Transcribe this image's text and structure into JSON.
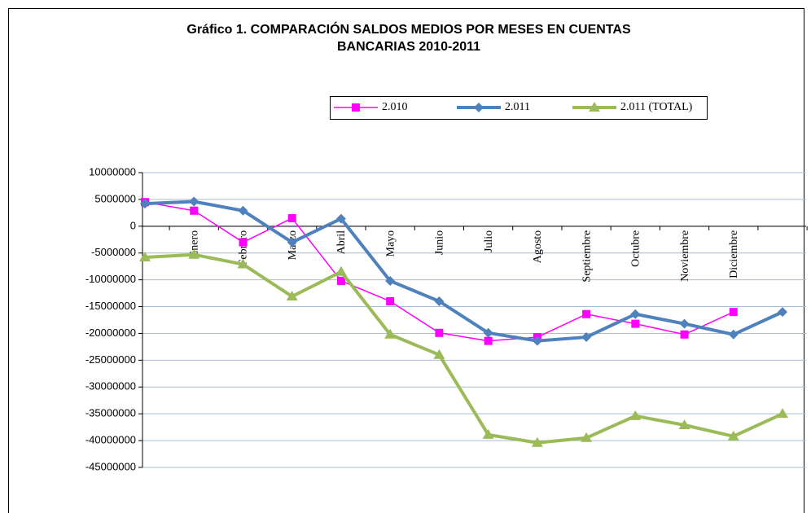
{
  "chart_data": {
    "type": "line",
    "title": "Gráfico 1. COMPARACIÓN SALDOS MEDIOS POR MESES EN CUENTAS",
    "subtitle": "BANCARIAS 2010-2011",
    "categories": [
      null,
      "Enero",
      "Febrero",
      "Marzo",
      "Abril",
      "Mayo",
      "Junio",
      "Julio",
      "Agosto",
      "Septiembre",
      "Octubre",
      "Noviembre",
      "Diciembre",
      null
    ],
    "series": [
      {
        "name": "2.010",
        "color": "#ff00ff",
        "marker": "square",
        "values": [
          4500000,
          2900000,
          -3000000,
          1500000,
          -10200000,
          -14000000,
          -19900000,
          -21400000,
          -20700000,
          -16400000,
          -18200000,
          -20200000,
          -16000000,
          null
        ]
      },
      {
        "name": "2.011",
        "color": "#4f81bd",
        "marker": "diamond",
        "values": [
          4200000,
          4600000,
          2900000,
          -3000000,
          1400000,
          -10200000,
          -14000000,
          -19900000,
          -21400000,
          -20700000,
          -16400000,
          -18200000,
          -20200000,
          -16000000
        ]
      },
      {
        "name": "2.011 (TOTAL)",
        "color": "#9bbb59",
        "marker": "triangle",
        "values": [
          -5800000,
          -5300000,
          -7100000,
          -13100000,
          -8500000,
          -20200000,
          -24000000,
          -38900000,
          -40400000,
          -39500000,
          -35400000,
          -37100000,
          -39200000,
          -35000000
        ]
      }
    ],
    "ylim": [
      -45000000,
      10000000
    ],
    "yticks": [
      10000000,
      5000000,
      0,
      -5000000,
      -10000000,
      -15000000,
      -20000000,
      -25000000,
      -30000000,
      -35000000,
      -40000000,
      -45000000
    ],
    "grid": true,
    "legend": "top"
  }
}
